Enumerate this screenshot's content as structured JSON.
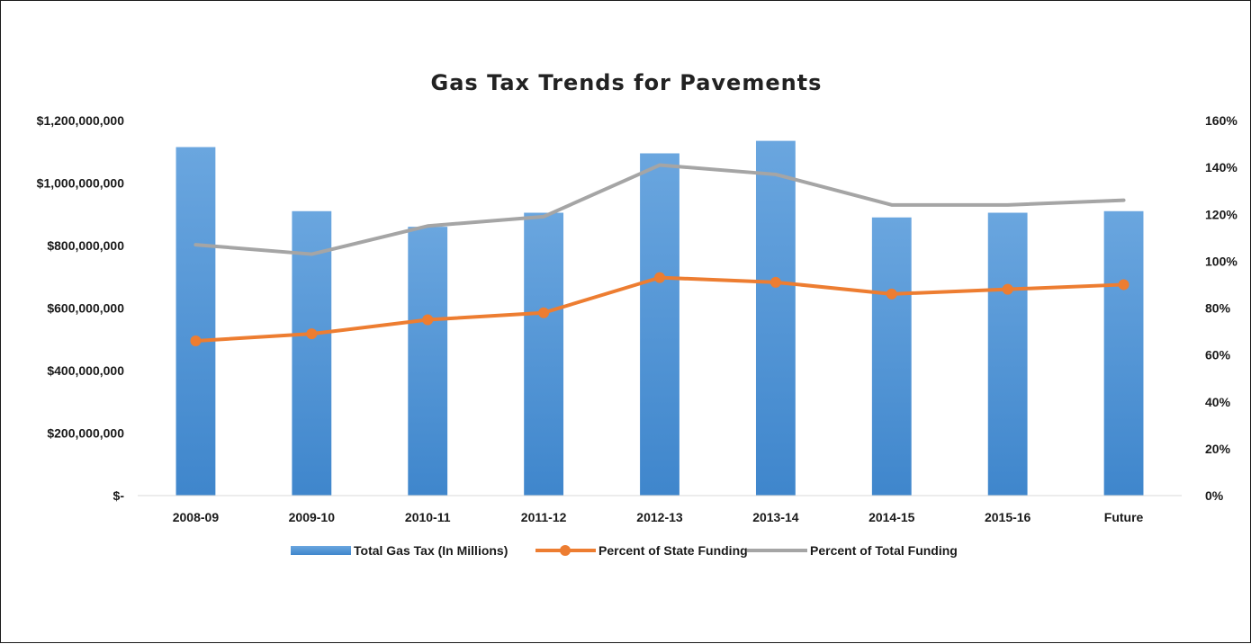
{
  "chart_data": {
    "type": "bar",
    "title": "Gas Tax Trends for Pavements",
    "categories": [
      "2008-09",
      "2009-10",
      "2010-11",
      "2011-12",
      "2012-13",
      "2013-14",
      "2014-15",
      "2015-16",
      "Future"
    ],
    "y_left": {
      "min": 0,
      "max": 1200000000,
      "tick_values": [
        0,
        200000000,
        400000000,
        600000000,
        800000000,
        1000000000,
        1200000000
      ],
      "tick_labels": [
        "$-",
        "$200,000,000",
        "$400,000,000",
        "$600,000,000",
        "$800,000,000",
        "$1,000,000,000",
        "$1,200,000,000"
      ]
    },
    "y_right": {
      "min": 0,
      "max": 160,
      "tick_values": [
        0,
        20,
        40,
        60,
        80,
        100,
        120,
        140,
        160
      ],
      "tick_labels": [
        "0%",
        "20%",
        "40%",
        "60%",
        "80%",
        "100%",
        "120%",
        "140%",
        "160%"
      ]
    },
    "series": [
      {
        "name": "Total Gas Tax (In Millions)",
        "type": "bar",
        "axis": "left",
        "color": "#5b9bd5",
        "values": [
          1115000000,
          910000000,
          860000000,
          905000000,
          1095000000,
          1135000000,
          890000000,
          905000000,
          910000000
        ]
      },
      {
        "name": "Percent of State Funding",
        "type": "line",
        "axis": "right",
        "color": "#ed7d31",
        "markers": true,
        "values": [
          66,
          69,
          75,
          78,
          93,
          91,
          86,
          88,
          90
        ]
      },
      {
        "name": "Percent of Total Funding",
        "type": "line",
        "axis": "right",
        "color": "#a5a5a5",
        "markers": false,
        "values": [
          107,
          103,
          115,
          119,
          141,
          137,
          124,
          124,
          126
        ]
      }
    ],
    "legend_position": "bottom",
    "grid": false
  }
}
